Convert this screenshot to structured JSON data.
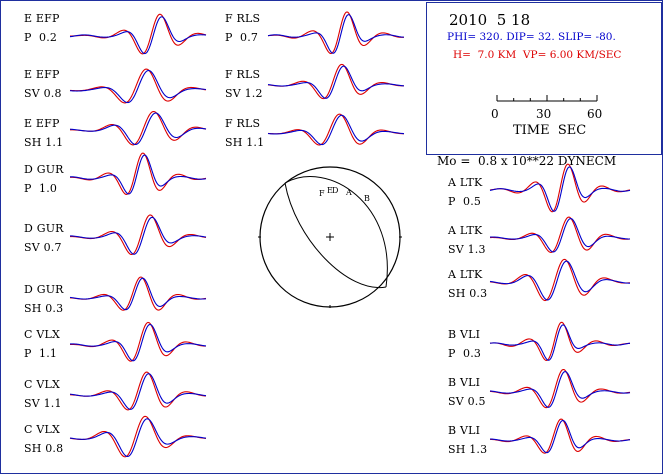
{
  "header": {
    "date": "2010  5 18",
    "mechanism": "PHI= 320. DIP= 32. SLIP= -80.",
    "depth_velocity": "H=  7.0 KM  VP= 6.00 KM/SEC",
    "scale_ticks": [
      "0",
      "30",
      "60"
    ],
    "scale_label": "TIME  SEC",
    "moment": "Mo =  0.8 x 10**22 DYNECM"
  },
  "colors": {
    "observed": "#0000cc",
    "synthetic": "#dd0000",
    "frame": "#1f2f9f",
    "text": "#000000"
  },
  "beachball": {
    "labels": [
      "F",
      "E",
      "D",
      "A",
      "B"
    ]
  },
  "traces": [
    {
      "station": "E EFP",
      "comp": "P  0.2"
    },
    {
      "station": "E EFP",
      "comp": "SV 0.8"
    },
    {
      "station": "E EFP",
      "comp": "SH 1.1"
    },
    {
      "station": "D GUR",
      "comp": "P  1.0"
    },
    {
      "station": "D GUR",
      "comp": "SV 0.7"
    },
    {
      "station": "D GUR",
      "comp": "SH 0.3"
    },
    {
      "station": "C VLX",
      "comp": "P  1.1"
    },
    {
      "station": "C VLX",
      "comp": "SV 1.1"
    },
    {
      "station": "C VLX",
      "comp": "SH 0.8"
    },
    {
      "station": "F RLS",
      "comp": "P  0.7"
    },
    {
      "station": "F RLS",
      "comp": "SV 1.2"
    },
    {
      "station": "F RLS",
      "comp": "SH 1.1"
    },
    {
      "station": "A LTK",
      "comp": "P  0.5"
    },
    {
      "station": "A LTK",
      "comp": "SV 1.3"
    },
    {
      "station": "A LTK",
      "comp": "SH 0.3"
    },
    {
      "station": "B VLI",
      "comp": "P  0.3"
    },
    {
      "station": "B VLI",
      "comp": "SV 0.5"
    },
    {
      "station": "B VLI",
      "comp": "SH 1.3"
    }
  ]
}
